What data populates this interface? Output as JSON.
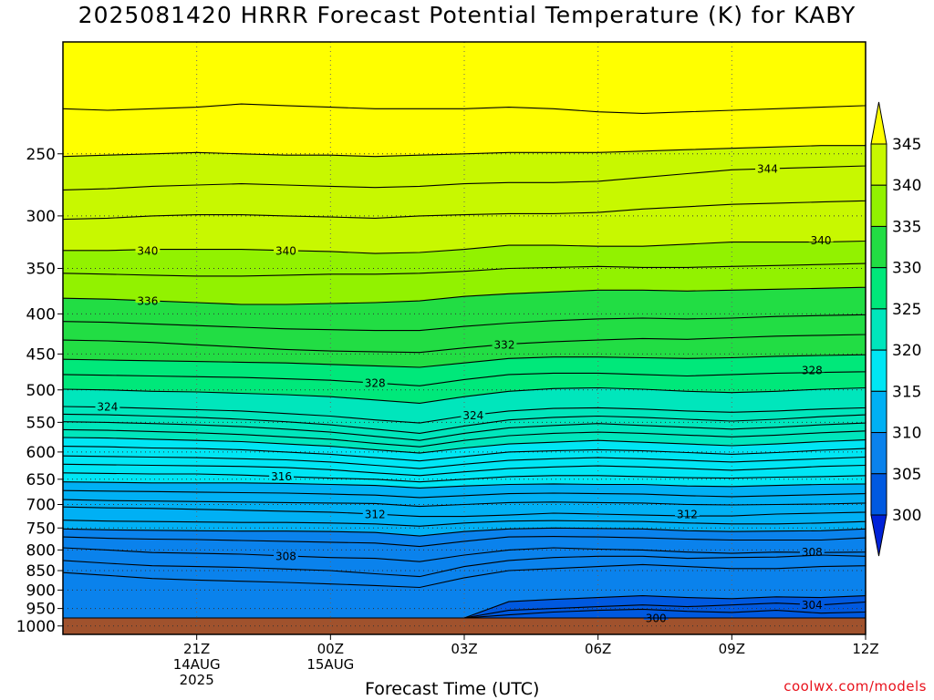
{
  "title": "2025081420 HRRR Forecast Potential Temperature (K) for KABY",
  "credit": "coolwx.com/models",
  "chart_data": {
    "type": "heatmap",
    "title": "2025081420 HRRR Forecast Potential Temperature (K) for KABY",
    "xlabel": "Forecast Time (UTC)",
    "ylabel": "",
    "x_unit": "hours after 2025081420 (forecast hour)",
    "x_range_hours": [
      -2,
      16
    ],
    "y_scale": "log",
    "y_range_hPa": [
      1025,
      180
    ],
    "x_ticks": [
      {
        "hour": 1,
        "lines": [
          "21Z",
          "14AUG",
          "2025"
        ]
      },
      {
        "hour": 4,
        "lines": [
          "00Z",
          "15AUG"
        ]
      },
      {
        "hour": 7,
        "lines": [
          "03Z"
        ]
      },
      {
        "hour": 10,
        "lines": [
          "06Z"
        ]
      },
      {
        "hour": 13,
        "lines": [
          "09Z"
        ]
      },
      {
        "hour": 16,
        "lines": [
          "12Z"
        ]
      }
    ],
    "y_ticks": [
      250,
      300,
      350,
      400,
      450,
      500,
      550,
      600,
      650,
      700,
      750,
      800,
      850,
      900,
      950,
      1000
    ],
    "grid": true,
    "ground_color": "#a0522d",
    "colorbar": {
      "levels": [
        300,
        305,
        310,
        315,
        320,
        325,
        330,
        335,
        340,
        345
      ],
      "colors": [
        "#0022d8",
        "#0059e0",
        "#0a82ec",
        "#00b0f4",
        "#00e6f4",
        "#00e6bc",
        "#00e87a",
        "#22dd44",
        "#92f200",
        "#c8f800",
        "#ffff00"
      ],
      "extend": "both"
    },
    "x_hours": [
      -2.0,
      -1.0,
      0.0,
      1.0,
      2.0,
      3.0,
      4.0,
      5.0,
      6.0,
      7.0,
      8.0,
      9.0,
      10.0,
      11.0,
      12.0,
      13.0,
      14.0,
      15.0,
      16.0,
      17.0
    ],
    "isentropes": [
      {
        "theta": 300,
        "pressure": [
          1009,
          1009,
          1009,
          1009,
          1009,
          1009,
          1009,
          1009,
          1009,
          1009,
          1005,
          1000,
          997,
          996,
          996,
          995,
          997,
          999,
          1003,
          1009
        ],
        "label_hour": 11.3
      },
      {
        "theta": 301,
        "pressure": [
          1009,
          1009,
          1009,
          1009,
          1009,
          1009,
          1009,
          1009,
          1009,
          1009,
          999,
          993,
          992,
          990,
          991,
          990,
          990,
          993,
          994,
          993
        ]
      },
      {
        "theta": 302,
        "pressure": [
          1009,
          1009,
          1009,
          1009,
          1009,
          1009,
          1009,
          1009,
          1009,
          1000,
          990,
          983,
          980,
          980,
          980,
          982,
          980,
          982,
          985,
          982
        ]
      },
      {
        "theta": 303,
        "pressure": [
          1009,
          1009,
          1009,
          1009,
          1009,
          1009,
          1009,
          1009,
          1009,
          995,
          968,
          960,
          955,
          952,
          958,
          961,
          955,
          963,
          960,
          956
        ]
      },
      {
        "theta": 304,
        "pressure": [
          1009,
          1009,
          1009,
          1009,
          1009,
          1009,
          1009,
          1009,
          1009,
          992,
          955,
          950,
          945,
          940,
          945,
          940,
          935,
          940,
          932,
          927
        ],
        "label_hour": 14.8
      },
      {
        "theta": 305,
        "pressure": [
          1009,
          1009,
          1009,
          1009,
          1009,
          1009,
          1009,
          1009,
          1009,
          978,
          931,
          925,
          920,
          915,
          920,
          923,
          918,
          920,
          915,
          901
        ]
      },
      {
        "theta": 306,
        "pressure": [
          855,
          862,
          870,
          874,
          877,
          880,
          884,
          888,
          893,
          868,
          850,
          845,
          840,
          835,
          840,
          845,
          845,
          840,
          838,
          835
        ]
      },
      {
        "theta": 307,
        "pressure": [
          825,
          832,
          838,
          840,
          842,
          846,
          850,
          858,
          865,
          840,
          825,
          818,
          815,
          815,
          820,
          818,
          817,
          812,
          815,
          815
        ]
      },
      {
        "theta": 308,
        "pressure": [
          795,
          800,
          806,
          808,
          810,
          814,
          818,
          820,
          828,
          812,
          800,
          795,
          798,
          800,
          805,
          808,
          805,
          806,
          805,
          795
        ],
        "label_hour": 3.0
      },
      {
        "theta": 309,
        "pressure": [
          770,
          773,
          775,
          776,
          778,
          780,
          782,
          784,
          792,
          780,
          770,
          769,
          770,
          772,
          775,
          777,
          777,
          777,
          772,
          768
        ]
      },
      {
        "theta": 310,
        "pressure": [
          752,
          754,
          755,
          756,
          757,
          757,
          758,
          760,
          768,
          758,
          752,
          750,
          751,
          752,
          756,
          758,
          757,
          756,
          752,
          749
        ]
      },
      {
        "theta": 311,
        "pressure": [
          733,
          735,
          736,
          737,
          738,
          738,
          739,
          741,
          746,
          739,
          735,
          734,
          735,
          736,
          739,
          741,
          741,
          739,
          736,
          733
        ]
      },
      {
        "theta": 312,
        "pressure": [
          705,
          707,
          708,
          710,
          712,
          714,
          716,
          720,
          725,
          725,
          722,
          718,
          720,
          722,
          724,
          724,
          720,
          718,
          716,
          712
        ],
        "label_hour": 5.0
      },
      {
        "theta": 313,
        "pressure": [
          690,
          692,
          693,
          694,
          695,
          696,
          697,
          698,
          704,
          700,
          696,
          695,
          696,
          697,
          700,
          701,
          700,
          699,
          697,
          695
        ]
      },
      {
        "theta": 314,
        "pressure": [
          672,
          673,
          674,
          675,
          676,
          677,
          679,
          681,
          686,
          682,
          678,
          677,
          678,
          679,
          682,
          684,
          682,
          680,
          678,
          676
        ]
      },
      {
        "theta": 315,
        "pressure": [
          655,
          656,
          657,
          657,
          657,
          658,
          660,
          662,
          667,
          663,
          660,
          659,
          660,
          660,
          663,
          664,
          662,
          660,
          659,
          657
        ]
      },
      {
        "theta": 316,
        "pressure": [
          638,
          639,
          640,
          640,
          642,
          645,
          648,
          650,
          655,
          650,
          645,
          643,
          643,
          645,
          647,
          648,
          646,
          645,
          643,
          641
        ],
        "label_hour": 2.9
      },
      {
        "theta": 317,
        "pressure": [
          622,
          623,
          624,
          625,
          626,
          628,
          632,
          638,
          643,
          636,
          630,
          627,
          625,
          627,
          630,
          633,
          630,
          626,
          624,
          621
        ]
      },
      {
        "theta": 318,
        "pressure": [
          607,
          608,
          609,
          610,
          612,
          614,
          618,
          624,
          630,
          622,
          615,
          612,
          610,
          612,
          615,
          618,
          615,
          612,
          609,
          606
        ]
      },
      {
        "theta": 319,
        "pressure": [
          590,
          591,
          593,
          594,
          596,
          600,
          604,
          610,
          616,
          608,
          600,
          598,
          596,
          598,
          601,
          604,
          601,
          597,
          594,
          591
        ]
      },
      {
        "theta": 320,
        "pressure": [
          575,
          576,
          578,
          580,
          582,
          586,
          590,
          596,
          602,
          593,
          586,
          583,
          580,
          583,
          586,
          589,
          586,
          582,
          579,
          576
        ]
      },
      {
        "theta": 321,
        "pressure": [
          562,
          563,
          565,
          567,
          570,
          574,
          578,
          585,
          591,
          580,
          572,
          568,
          566,
          568,
          571,
          574,
          571,
          567,
          564,
          561
        ]
      },
      {
        "theta": 322,
        "pressure": [
          549,
          550,
          552,
          554,
          557,
          561,
          566,
          573,
          580,
          568,
          559,
          555,
          552,
          555,
          558,
          561,
          558,
          554,
          551,
          548
        ]
      },
      {
        "theta": 323,
        "pressure": [
          537,
          538,
          540,
          542,
          545,
          549,
          554,
          561,
          568,
          556,
          546,
          542,
          540,
          542,
          545,
          548,
          545,
          541,
          538,
          535
        ]
      },
      {
        "theta": 324,
        "pressure": [
          525,
          526,
          528,
          530,
          532,
          536,
          540,
          546,
          551,
          540,
          532,
          528,
          527,
          529,
          532,
          534,
          532,
          529,
          527,
          524
        ],
        "label_hour": 7.2
      },
      {
        "theta": 326,
        "pressure": [
          499,
          500,
          502,
          503,
          505,
          507,
          510,
          515,
          520,
          510,
          502,
          498,
          497,
          499,
          502,
          504,
          502,
          499,
          497,
          495
        ]
      },
      {
        "theta": 328,
        "pressure": [
          478,
          479,
          480,
          481,
          482,
          484,
          486,
          490,
          494,
          485,
          478,
          476,
          476,
          478,
          480,
          478,
          476,
          475,
          474,
          472
        ],
        "label_hour": 5.0
      },
      {
        "theta": 330,
        "pressure": [
          457,
          458,
          459,
          460,
          461,
          462,
          464,
          466,
          468,
          462,
          456,
          454,
          454,
          455,
          456,
          455,
          453,
          452,
          451,
          450
        ]
      },
      {
        "theta": 332,
        "pressure": [
          432,
          433,
          435,
          438,
          441,
          444,
          446,
          447,
          448,
          442,
          437,
          434,
          432,
          430,
          431,
          429,
          427,
          426,
          425,
          424
        ],
        "label_hour": 7.9
      },
      {
        "theta": 334,
        "pressure": [
          409,
          410,
          412,
          414,
          416,
          418,
          419,
          420,
          420,
          415,
          411,
          408,
          406,
          405,
          406,
          405,
          403,
          402,
          401,
          400
        ]
      },
      {
        "theta": 336,
        "pressure": [
          382,
          383,
          385,
          387,
          389,
          389,
          388,
          387,
          385,
          380,
          377,
          375,
          373,
          373,
          374,
          373,
          372,
          371,
          370,
          369
        ],
        "label_hour": -0.1
      },
      {
        "theta": 338,
        "pressure": [
          355,
          356,
          357,
          358,
          358,
          357,
          356,
          356,
          355,
          353,
          350,
          349,
          348,
          349,
          349,
          348,
          347,
          346,
          345,
          345
        ]
      },
      {
        "theta": 340,
        "pressure": [
          332,
          332,
          331,
          331,
          331,
          332,
          333,
          335,
          334,
          331,
          327,
          327,
          328,
          328,
          326,
          324,
          324,
          324,
          323,
          322
        ],
        "label_hour": 3.0
      },
      {
        "theta": 342,
        "pressure": [
          303,
          302,
          300,
          299,
          299,
          300,
          301,
          302,
          300,
          299,
          298,
          298,
          297,
          294,
          292,
          290,
          289,
          288,
          287,
          286
        ]
      },
      {
        "theta": 344,
        "pressure": [
          278,
          277,
          275,
          274,
          273,
          274,
          275,
          276,
          275,
          273,
          272,
          272,
          271,
          268,
          265,
          262,
          261,
          260,
          259,
          258
        ],
        "label_hour": 13.8
      },
      {
        "theta": 346,
        "pressure": [
          252,
          251,
          250,
          249,
          250,
          251,
          251,
          252,
          251,
          250,
          249,
          249,
          249,
          248,
          247,
          246,
          245,
          244,
          244,
          243
        ]
      },
      {
        "theta": 348,
        "pressure": [
          219,
          220,
          219,
          218,
          216,
          217,
          218,
          219,
          219,
          219,
          218,
          219,
          221,
          222,
          221,
          220,
          219,
          218,
          217,
          216
        ]
      }
    ],
    "extra_labels": [
      {
        "text": "340",
        "hour": -0.1,
        "pressure": 332
      },
      {
        "text": "340",
        "hour": 15.0,
        "pressure": 322
      },
      {
        "text": "324",
        "hour": -1.0,
        "pressure": 525
      },
      {
        "text": "328",
        "hour": 14.8,
        "pressure": 472
      },
      {
        "text": "312",
        "hour": 12.0,
        "pressure": 720
      },
      {
        "text": "308",
        "hour": 14.8,
        "pressure": 805
      }
    ]
  }
}
